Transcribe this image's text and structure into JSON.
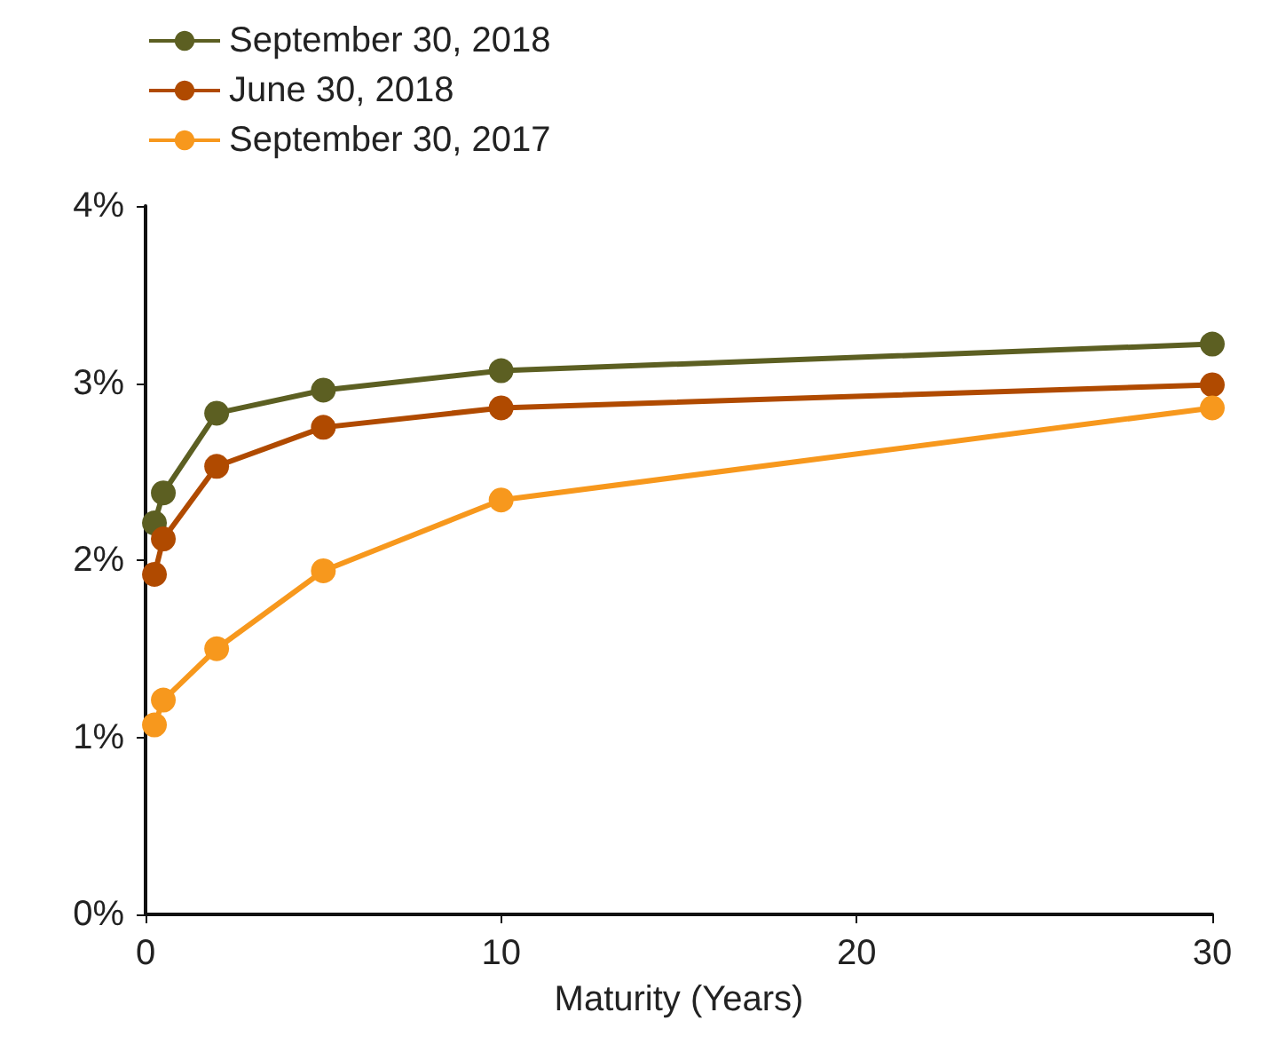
{
  "chart_data": {
    "type": "line",
    "xlabel": "Maturity (Years)",
    "x": [
      0.25,
      0.5,
      2,
      5,
      10,
      30
    ],
    "series": [
      {
        "name": "September 30, 2018",
        "color": "#5c5f22",
        "values": [
          2.21,
          2.38,
          2.83,
          2.96,
          3.07,
          3.22
        ]
      },
      {
        "name": "June 30, 2018",
        "color": "#b04a00",
        "values": [
          1.92,
          2.12,
          2.53,
          2.75,
          2.86,
          2.99
        ]
      },
      {
        "name": "September 30, 2017",
        "color": "#f7981d",
        "values": [
          1.07,
          1.21,
          1.5,
          1.94,
          2.34,
          2.86
        ]
      }
    ],
    "xlim": [
      0,
      30
    ],
    "xticks": [
      0,
      10,
      20,
      30
    ],
    "ylim": [
      0,
      4
    ],
    "yticks": [
      {
        "value": 0,
        "label": "0%"
      },
      {
        "value": 1,
        "label": "1%"
      },
      {
        "value": 2,
        "label": "2%"
      },
      {
        "value": 3,
        "label": "3%"
      },
      {
        "value": 4,
        "label": "4%"
      }
    ],
    "grid": false,
    "legend": "top left",
    "marker": "circle",
    "line_style": "solid"
  }
}
